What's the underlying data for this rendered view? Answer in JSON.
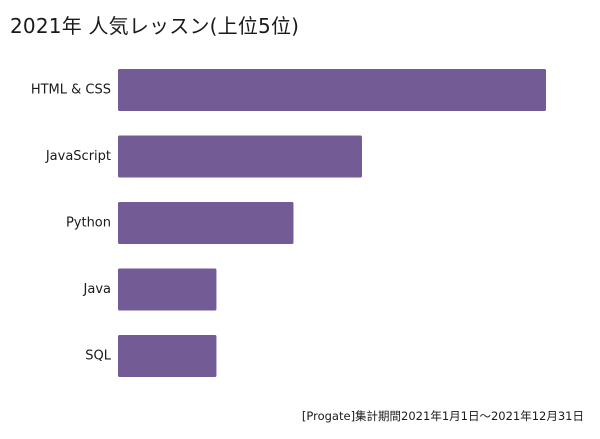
{
  "chart_data": {
    "type": "bar",
    "orientation": "horizontal",
    "title": "2021年 人気レッスン(上位5位)",
    "categories": [
      "HTML & CSS",
      "JavaScript",
      "Python",
      "Java",
      "SQL"
    ],
    "values": [
      100,
      57,
      41,
      23,
      23
    ],
    "xlabel": "",
    "ylabel": "",
    "xlim": [
      0,
      100
    ],
    "grid": false,
    "legend": "none",
    "bar_color": "#735c96",
    "annotation": "[Progate]集計期間2021年1月1日〜2021年12月31日"
  }
}
